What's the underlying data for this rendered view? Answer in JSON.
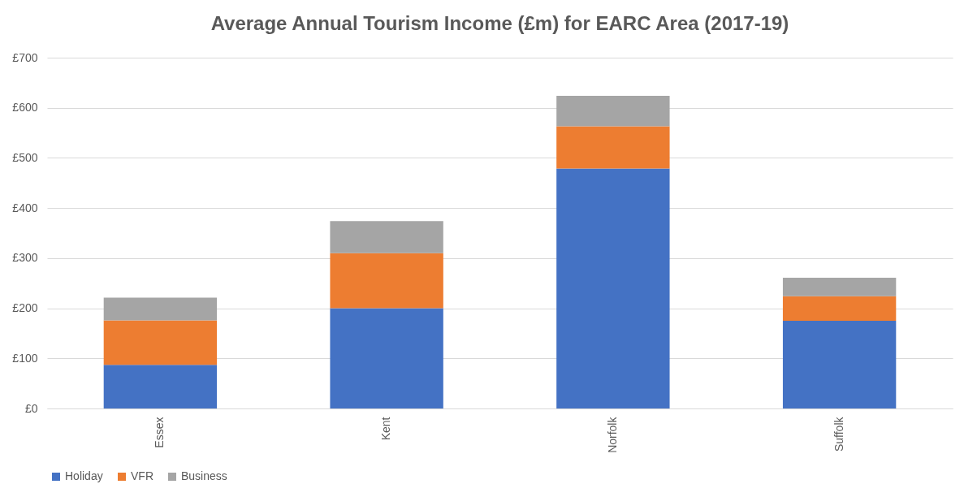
{
  "chart_data": {
    "type": "bar",
    "title": "Average Annual Tourism Income (£m) for EARC Area (2017-19)",
    "categories": [
      "Essex",
      "Kent",
      "Norfolk",
      "Suffolk"
    ],
    "stacked": true,
    "series": [
      {
        "name": "Holiday",
        "color": "#4472c4",
        "values": [
          87,
          200,
          479,
          175
        ]
      },
      {
        "name": "VFR",
        "color": "#ed7d31",
        "values": [
          89,
          110,
          84,
          49
        ]
      },
      {
        "name": "Business",
        "color": "#a5a5a5",
        "values": [
          45,
          64,
          61,
          37
        ]
      }
    ],
    "ylim": [
      0,
      700
    ],
    "yticks": [
      {
        "value": 0,
        "label": "£0"
      },
      {
        "value": 100,
        "label": "£100"
      },
      {
        "value": 200,
        "label": "£200"
      },
      {
        "value": 300,
        "label": "£300"
      },
      {
        "value": 400,
        "label": "£400"
      },
      {
        "value": 500,
        "label": "£500"
      },
      {
        "value": 600,
        "label": "£600"
      },
      {
        "value": 700,
        "label": "£700"
      }
    ],
    "grid": "y",
    "legend": "bottom"
  }
}
